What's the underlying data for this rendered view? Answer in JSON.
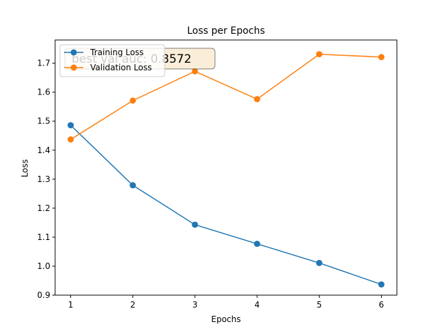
{
  "chart_data": {
    "type": "line",
    "title": "Loss per Epochs",
    "xlabel": "Epochs",
    "ylabel": "Loss",
    "x": [
      1,
      2,
      3,
      4,
      5,
      6
    ],
    "xlim": [
      0.75,
      6.25
    ],
    "ylim": [
      0.9,
      1.78
    ],
    "xticks": [
      1,
      2,
      3,
      4,
      5,
      6
    ],
    "yticks": [
      "0.9",
      "1.0",
      "1.1",
      "1.2",
      "1.3",
      "1.4",
      "1.5",
      "1.6",
      "1.7"
    ],
    "grid": false,
    "legend_position": "upper-left",
    "series": [
      {
        "name": "Training Loss",
        "color": "#1f77b4",
        "values": [
          1.486,
          1.279,
          1.143,
          1.077,
          1.011,
          0.937
        ]
      },
      {
        "name": "Validation Loss",
        "color": "#ff7f0e",
        "values": [
          1.437,
          1.571,
          1.672,
          1.576,
          1.731,
          1.721
        ]
      }
    ],
    "annotation": {
      "text": "best val auc: 0.8572",
      "box_color": "#f5deb3"
    }
  }
}
